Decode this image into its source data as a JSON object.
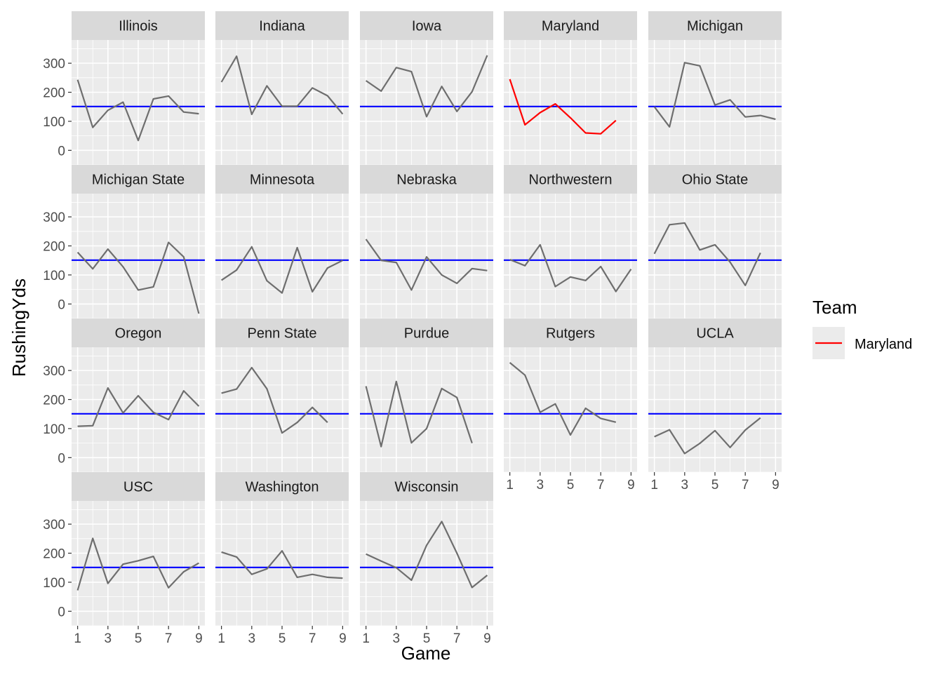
{
  "chart_data": {
    "type": "line",
    "layout": "facet_wrap",
    "xlabel": "Game",
    "ylabel": "RushingYds",
    "xlim": [
      0.6,
      9.4
    ],
    "ylim": [
      -50,
      380
    ],
    "x_ticks": [
      1,
      3,
      5,
      7,
      9
    ],
    "y_ticks": [
      0,
      100,
      200,
      300
    ],
    "grid": true,
    "reference_line": {
      "y": 151,
      "color": "#0000FF"
    },
    "line_color_default": "#6E6E6E",
    "highlight_color": "#FF0000",
    "legend": {
      "title": "Team",
      "placement": "right",
      "entries": [
        {
          "label": "Maryland",
          "color": "#FF0000"
        }
      ]
    },
    "panels": [
      {
        "name": "Illinois",
        "highlight": false,
        "x": [
          1,
          2,
          3,
          4,
          5,
          6,
          7,
          8,
          9
        ],
        "y": [
          243,
          79,
          138,
          166,
          34,
          177,
          187,
          132,
          126
        ]
      },
      {
        "name": "Indiana",
        "highlight": false,
        "x": [
          1,
          2,
          3,
          4,
          5,
          6,
          7,
          8,
          9
        ],
        "y": [
          235,
          324,
          124,
          222,
          152,
          152,
          215,
          188,
          125
        ]
      },
      {
        "name": "Iowa",
        "highlight": false,
        "x": [
          1,
          2,
          3,
          4,
          5,
          6,
          7,
          8,
          9
        ],
        "y": [
          240,
          204,
          285,
          271,
          116,
          220,
          134,
          202,
          327
        ]
      },
      {
        "name": "Maryland",
        "highlight": true,
        "x": [
          1,
          2,
          3,
          4,
          5,
          6,
          7,
          8
        ],
        "y": [
          245,
          88,
          130,
          160,
          112,
          60,
          57,
          103
        ]
      },
      {
        "name": "Michigan",
        "highlight": false,
        "x": [
          1,
          2,
          3,
          4,
          5,
          6,
          7,
          8,
          9
        ],
        "y": [
          150,
          81,
          302,
          291,
          156,
          174,
          115,
          120,
          107
        ]
      },
      {
        "name": "Michigan State",
        "highlight": false,
        "x": [
          1,
          2,
          3,
          4,
          5,
          6,
          7,
          8,
          9
        ],
        "y": [
          178,
          121,
          189,
          128,
          48,
          59,
          212,
          162,
          -33
        ]
      },
      {
        "name": "Minnesota",
        "highlight": false,
        "x": [
          1,
          2,
          3,
          4,
          5,
          6,
          7,
          8,
          9
        ],
        "y": [
          82,
          117,
          197,
          80,
          38,
          194,
          42,
          124,
          150
        ]
      },
      {
        "name": "Nebraska",
        "highlight": false,
        "x": [
          1,
          2,
          3,
          4,
          5,
          6,
          7,
          8,
          9
        ],
        "y": [
          223,
          150,
          143,
          48,
          162,
          100,
          71,
          122,
          115
        ]
      },
      {
        "name": "Northwestern",
        "highlight": false,
        "x": [
          1,
          2,
          3,
          4,
          5,
          6,
          7,
          8,
          9
        ],
        "y": [
          153,
          132,
          204,
          60,
          93,
          81,
          129,
          43,
          120
        ]
      },
      {
        "name": "Ohio State",
        "highlight": false,
        "x": [
          1,
          2,
          3,
          4,
          5,
          6,
          7,
          8
        ],
        "y": [
          173,
          273,
          279,
          186,
          204,
          144,
          64,
          176
        ]
      },
      {
        "name": "Oregon",
        "highlight": false,
        "x": [
          1,
          2,
          3,
          4,
          5,
          6,
          7,
          8,
          9
        ],
        "y": [
          108,
          110,
          240,
          154,
          213,
          156,
          131,
          230,
          177
        ]
      },
      {
        "name": "Penn State",
        "highlight": false,
        "x": [
          1,
          2,
          3,
          4,
          5,
          6,
          7,
          8
        ],
        "y": [
          222,
          236,
          310,
          237,
          85,
          121,
          173,
          121
        ]
      },
      {
        "name": "Purdue",
        "highlight": false,
        "x": [
          1,
          2,
          3,
          4,
          5,
          6,
          7,
          8
        ],
        "y": [
          246,
          38,
          262,
          51,
          100,
          238,
          207,
          50
        ]
      },
      {
        "name": "Rutgers",
        "highlight": false,
        "x": [
          1,
          2,
          3,
          4,
          5,
          6,
          7,
          8
        ],
        "y": [
          327,
          284,
          156,
          185,
          78,
          170,
          135,
          122
        ]
      },
      {
        "name": "UCLA",
        "highlight": false,
        "x": [
          1,
          2,
          3,
          4,
          5,
          6,
          7,
          8
        ],
        "y": [
          72,
          96,
          14,
          49,
          93,
          35,
          95,
          137
        ]
      },
      {
        "name": "USC",
        "highlight": false,
        "x": [
          1,
          2,
          3,
          4,
          5,
          6,
          7,
          8,
          9
        ],
        "y": [
          72,
          251,
          96,
          162,
          174,
          189,
          81,
          136,
          166
        ]
      },
      {
        "name": "Washington",
        "highlight": false,
        "x": [
          1,
          2,
          3,
          4,
          5,
          6,
          7,
          8,
          9
        ],
        "y": [
          204,
          187,
          127,
          146,
          208,
          117,
          127,
          117,
          114
        ]
      },
      {
        "name": "Wisconsin",
        "highlight": false,
        "x": [
          1,
          2,
          3,
          4,
          5,
          6,
          7,
          8,
          9
        ],
        "y": [
          197,
          173,
          150,
          107,
          227,
          309,
          200,
          82,
          124
        ]
      }
    ]
  }
}
